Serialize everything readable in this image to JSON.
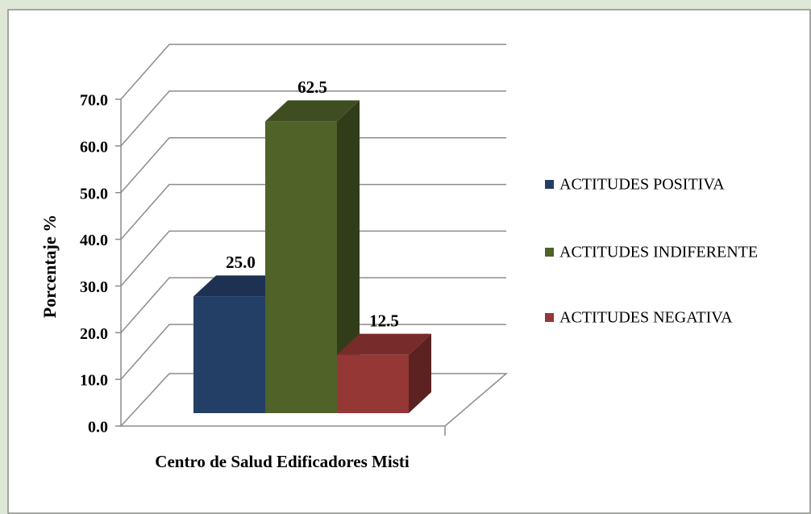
{
  "chart_data": {
    "type": "bar3d",
    "y_label": "Porcentaje %",
    "categories": [
      "Centro de Salud Edificadores Misti"
    ],
    "series": [
      {
        "name": "ACTITUDES POSITIVA",
        "color": "#243f66",
        "values": [
          25.0
        ],
        "value_labels": [
          "25.0"
        ]
      },
      {
        "name": "ACTITUDES INDIFERENTE",
        "color": "#4f6228",
        "values": [
          62.5
        ],
        "value_labels": [
          "62.5"
        ]
      },
      {
        "name": "ACTITUDES NEGATIVA",
        "color": "#953735",
        "values": [
          12.5
        ],
        "value_labels": [
          "12.5"
        ]
      }
    ],
    "ylim": [
      0,
      70
    ],
    "yticks": [
      {
        "value": 0,
        "label": "0.0"
      },
      {
        "value": 10,
        "label": "10.0"
      },
      {
        "value": 20,
        "label": "20.0"
      },
      {
        "value": 30,
        "label": "30.0"
      },
      {
        "value": 40,
        "label": "40.0"
      },
      {
        "value": 50,
        "label": "50.0"
      },
      {
        "value": 60,
        "label": "60.0"
      },
      {
        "value": 70,
        "label": "70.0"
      }
    ],
    "grid": true,
    "legend": "right"
  }
}
